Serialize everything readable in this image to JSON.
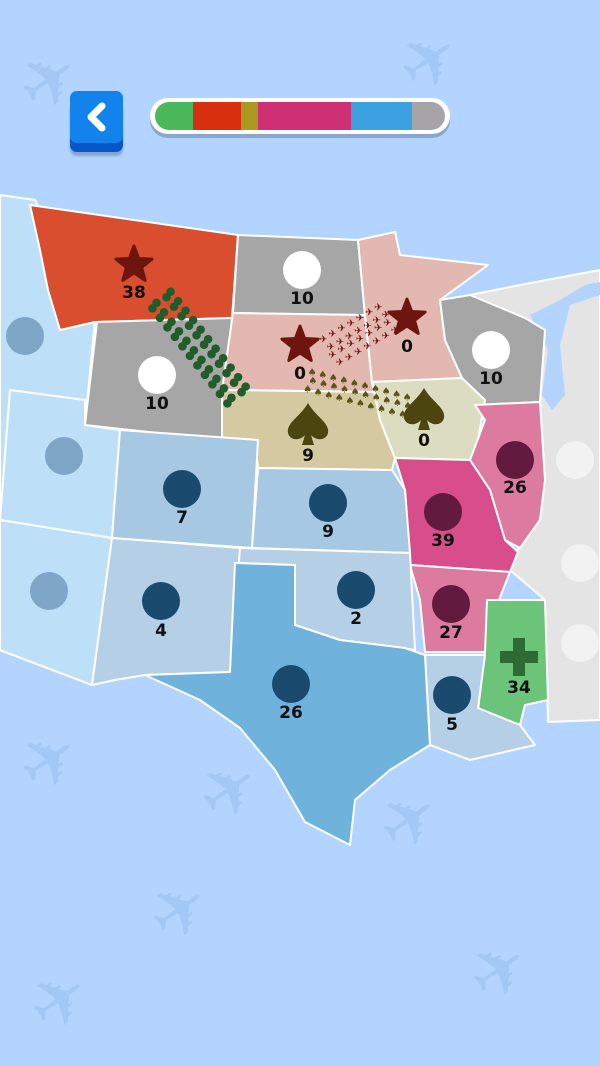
{
  "back_button": {
    "icon": "chevron-left-icon",
    "color": "#1283ed"
  },
  "progress_bar": {
    "segments": [
      {
        "team": "green",
        "color": "#4cb85c",
        "share": 0.13
      },
      {
        "team": "red",
        "color": "#d8300f",
        "share": 0.165
      },
      {
        "team": "olive",
        "color": "#a89a20",
        "share": 0.06
      },
      {
        "team": "magenta",
        "color": "#cf3073",
        "share": 0.32
      },
      {
        "team": "blue",
        "color": "#3aa0e0",
        "share": 0.21
      },
      {
        "team": "neutral",
        "color": "#a6a4a6",
        "share": 0.115
      }
    ]
  },
  "states": [
    {
      "name": "montana",
      "count": "38",
      "icon": "star-icon",
      "fill": "#d84e2e",
      "icon_color": "#6e1510"
    },
    {
      "name": "north-dakota",
      "count": "10",
      "icon": "circle-icon",
      "fill": "#a6a6a6",
      "icon_color": "#ffffff"
    },
    {
      "name": "wyoming",
      "count": "10",
      "icon": "circle-icon",
      "fill": "#a6a6a6",
      "icon_color": "#ffffff"
    },
    {
      "name": "south-dakota",
      "count": "0",
      "icon": "star-icon",
      "fill": "#e2b8b0",
      "icon_color": "#6e1510"
    },
    {
      "name": "minnesota",
      "count": "0",
      "icon": "star-icon",
      "fill": "#e2b8b0",
      "icon_color": "#6e1510"
    },
    {
      "name": "wisconsin",
      "count": "10",
      "icon": "circle-icon",
      "fill": "#a6a6a6",
      "icon_color": "#ffffff"
    },
    {
      "name": "nebraska",
      "count": "9",
      "icon": "spade-icon",
      "fill": "#d4c9a0",
      "icon_color": "#4c4510"
    },
    {
      "name": "iowa",
      "count": "0",
      "icon": "spade-icon",
      "fill": "#dcdcc0",
      "icon_color": "#4c4510"
    },
    {
      "name": "illinois",
      "count": "26",
      "icon": "circle-icon",
      "fill": "#dc7aa0",
      "icon_color": "#621a3e"
    },
    {
      "name": "missouri",
      "count": "39",
      "icon": "circle-icon",
      "fill": "#d84e8a",
      "icon_color": "#621a3e"
    },
    {
      "name": "arkansas",
      "count": "27",
      "icon": "circle-icon",
      "fill": "#dc7aa0",
      "icon_color": "#621a3e"
    },
    {
      "name": "mississippi",
      "count": "34",
      "icon": "plus-icon",
      "fill": "#6cc47a",
      "icon_color": "#2e6b33"
    },
    {
      "name": "colorado",
      "count": "7",
      "icon": "circle-icon",
      "fill": "#a6c8e2",
      "icon_color": "#1a4a6e"
    },
    {
      "name": "kansas",
      "count": "9",
      "icon": "circle-icon",
      "fill": "#a6c8e2",
      "icon_color": "#1a4a6e"
    },
    {
      "name": "new-mexico",
      "count": "4",
      "icon": "circle-icon",
      "fill": "#b5d0e6",
      "icon_color": "#1a4a6e"
    },
    {
      "name": "oklahoma",
      "count": "2",
      "icon": "circle-icon",
      "fill": "#b5d0e6",
      "icon_color": "#1a4a6e"
    },
    {
      "name": "texas",
      "count": "26",
      "icon": "circle-icon",
      "fill": "#6fb2dc",
      "icon_color": "#1a4a6e"
    },
    {
      "name": "louisiana",
      "count": "5",
      "icon": "circle-icon",
      "fill": "#b5d0e6",
      "icon_color": "#1a4a6e"
    }
  ],
  "colors": {
    "ocean": "#b2d4fe",
    "unclaimed_west": "#bde0f8",
    "unclaimed_east": "#e4e4e4"
  }
}
